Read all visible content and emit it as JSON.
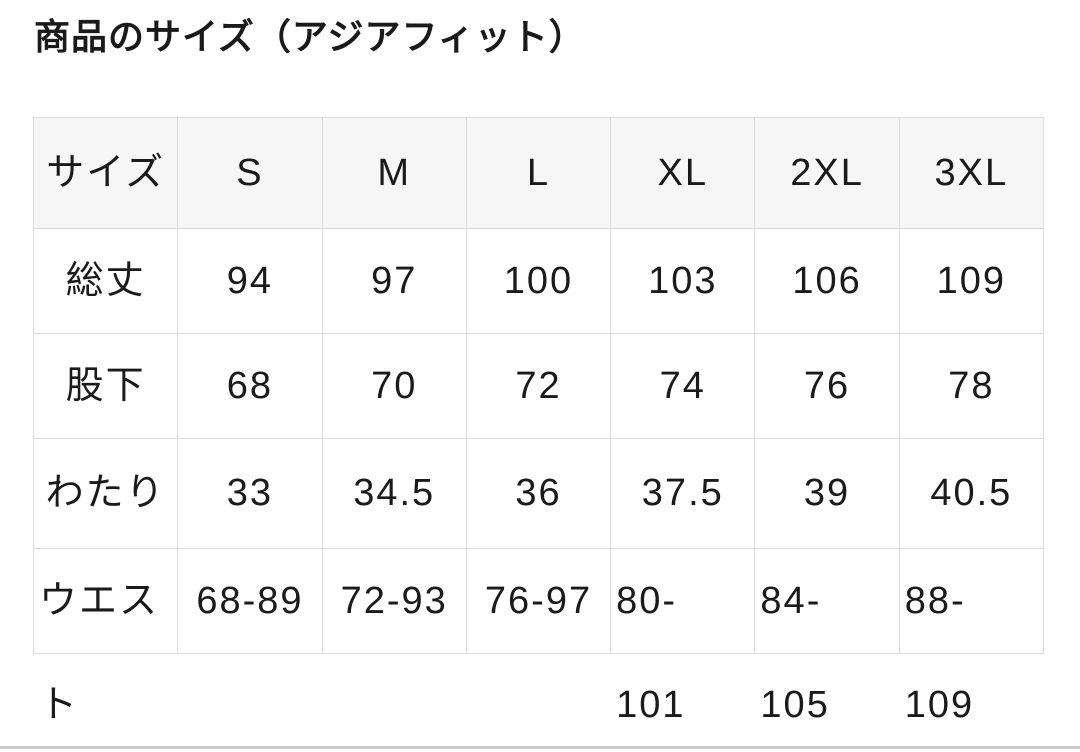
{
  "page": {
    "title": "商品のサイズ（アジアフィット）"
  },
  "size_table": {
    "columns": [
      "サイズ",
      "S",
      "M",
      "L",
      "XL",
      "2XL",
      "3XL"
    ],
    "rows": [
      {
        "label": "総丈",
        "values": [
          "94",
          "97",
          "100",
          "103",
          "106",
          "109"
        ]
      },
      {
        "label": "股下",
        "values": [
          "68",
          "70",
          "72",
          "74",
          "76",
          "78"
        ]
      },
      {
        "label": "わたり",
        "values": [
          "33",
          "34.5",
          "36",
          "37.5",
          "39",
          "40.5"
        ]
      },
      {
        "label": "ウエス\nト",
        "values": [
          "68-89",
          "72-93",
          "76-97",
          "80-\n101",
          "84-\n105",
          "88-\n109"
        ]
      }
    ]
  },
  "colors": {
    "header_bg": "#f6f6f6",
    "border": "#dcdcdc",
    "text": "#1a1a1a",
    "divider": "#c9c9c9",
    "background": "#ffffff"
  }
}
